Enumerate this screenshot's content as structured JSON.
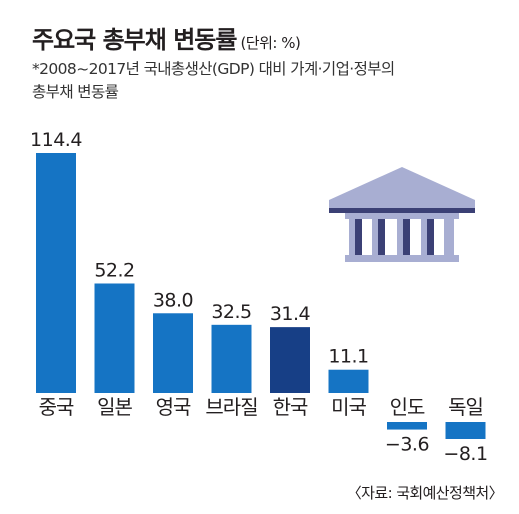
{
  "title": "주요국 총부채 변동률",
  "unit": "(단위: %)",
  "subtitle_lines": [
    "*2008~2017년 국내총생산(GDP) 대비 가계·기업·정부의",
    "총부채 변동률"
  ],
  "source": "〈자료: 국회예산정책처〉",
  "icon": "bank-building-icon",
  "colors": {
    "bar": "#1574c4",
    "highlight": "#173f86",
    "icon_light": "#a8aed2",
    "icon_dark": "#3b4075"
  },
  "chart_data": {
    "type": "bar",
    "categories": [
      "중국",
      "일본",
      "영국",
      "브라질",
      "한국",
      "미국",
      "인도",
      "독일"
    ],
    "values": [
      114.4,
      52.2,
      38.0,
      32.5,
      31.4,
      11.1,
      -3.6,
      -8.1
    ],
    "value_labels": [
      "114.4",
      "52.2",
      "38.0",
      "32.5",
      "31.4",
      "11.1",
      "−3.6",
      "−8.1"
    ],
    "highlight_category": "한국",
    "title": "주요국 총부채 변동률",
    "ylabel": "",
    "xlabel": "",
    "grid": false
  }
}
